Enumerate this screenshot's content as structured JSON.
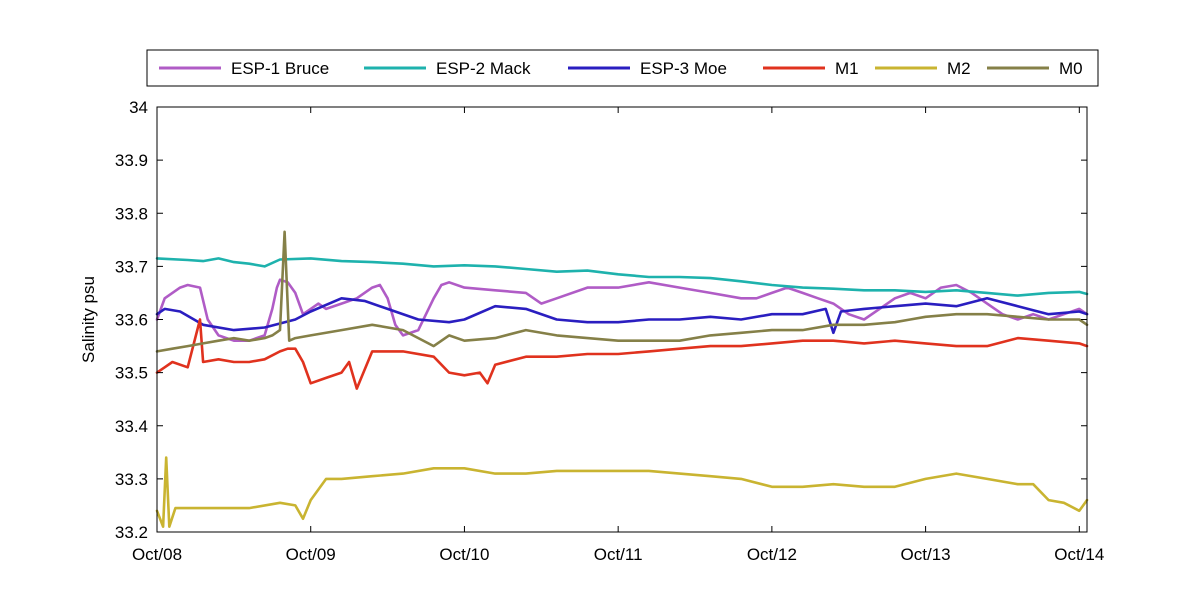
{
  "chart_data": {
    "type": "line",
    "title": "",
    "xlabel": "",
    "ylabel": "Salinity psu",
    "xlim": [
      "Oct/08",
      "Oct/14"
    ],
    "ylim": [
      33.2,
      34.0
    ],
    "grid": false,
    "legend_placement": "top",
    "x_ticks": [
      "Oct/08",
      "Oct/09",
      "Oct/10",
      "Oct/11",
      "Oct/12",
      "Oct/13",
      "Oct/14"
    ],
    "y_ticks": [
      "33.2",
      "33.3",
      "33.4",
      "33.5",
      "33.6",
      "33.7",
      "33.8",
      "33.9",
      "34"
    ],
    "series": [
      {
        "name": "ESP-1 Bruce",
        "color": "#b05cc6",
        "x": [
          0.0,
          0.05,
          0.15,
          0.2,
          0.28,
          0.33,
          0.4,
          0.5,
          0.6,
          0.7,
          0.75,
          0.78,
          0.8,
          0.85,
          0.9,
          0.95,
          1.0,
          1.05,
          1.1,
          1.2,
          1.3,
          1.4,
          1.45,
          1.5,
          1.55,
          1.6,
          1.7,
          1.8,
          1.85,
          1.9,
          2.0,
          2.2,
          2.4,
          2.5,
          2.6,
          2.8,
          3.0,
          3.2,
          3.4,
          3.6,
          3.8,
          3.9,
          4.0,
          4.1,
          4.2,
          4.3,
          4.4,
          4.5,
          4.6,
          4.7,
          4.8,
          4.9,
          5.0,
          5.1,
          5.2,
          5.3,
          5.4,
          5.5,
          5.6,
          5.7,
          5.8,
          5.9,
          6.0,
          6.05
        ],
        "y": [
          33.6,
          33.64,
          33.66,
          33.665,
          33.66,
          33.6,
          33.57,
          33.56,
          33.56,
          33.57,
          33.62,
          33.66,
          33.675,
          33.67,
          33.65,
          33.61,
          33.62,
          33.63,
          33.62,
          33.63,
          33.64,
          33.66,
          33.665,
          33.64,
          33.59,
          33.57,
          33.58,
          33.64,
          33.665,
          33.67,
          33.66,
          33.655,
          33.65,
          33.63,
          33.64,
          33.66,
          33.66,
          33.67,
          33.66,
          33.65,
          33.64,
          33.64,
          33.65,
          33.66,
          33.65,
          33.64,
          33.63,
          33.61,
          33.6,
          33.62,
          33.64,
          33.65,
          33.64,
          33.66,
          33.665,
          33.65,
          33.63,
          33.61,
          33.6,
          33.61,
          33.6,
          33.61,
          33.62,
          33.61
        ]
      },
      {
        "name": "ESP-2 Mack",
        "color": "#1eb2ad",
        "x": [
          0.0,
          0.2,
          0.3,
          0.4,
          0.5,
          0.6,
          0.7,
          0.8,
          1.0,
          1.2,
          1.4,
          1.6,
          1.8,
          2.0,
          2.2,
          2.4,
          2.6,
          2.8,
          3.0,
          3.2,
          3.4,
          3.6,
          3.8,
          4.0,
          4.2,
          4.4,
          4.6,
          4.8,
          5.0,
          5.2,
          5.4,
          5.6,
          5.8,
          6.0,
          6.05
        ],
        "y": [
          33.715,
          33.712,
          33.71,
          33.715,
          33.708,
          33.705,
          33.7,
          33.713,
          33.715,
          33.71,
          33.708,
          33.705,
          33.7,
          33.702,
          33.7,
          33.695,
          33.69,
          33.692,
          33.685,
          33.68,
          33.68,
          33.678,
          33.672,
          33.665,
          33.66,
          33.658,
          33.655,
          33.655,
          33.652,
          33.655,
          33.65,
          33.645,
          33.65,
          33.652,
          33.648
        ]
      },
      {
        "name": "ESP-3 Moe",
        "color": "#2a1ec0",
        "x": [
          0.0,
          0.05,
          0.15,
          0.3,
          0.5,
          0.7,
          0.9,
          1.0,
          1.2,
          1.35,
          1.5,
          1.7,
          1.9,
          2.0,
          2.2,
          2.4,
          2.6,
          2.8,
          3.0,
          3.2,
          3.4,
          3.6,
          3.8,
          4.0,
          4.2,
          4.35,
          4.4,
          4.45,
          4.6,
          4.8,
          5.0,
          5.2,
          5.4,
          5.6,
          5.8,
          6.0,
          6.05
        ],
        "y": [
          33.61,
          33.62,
          33.615,
          33.59,
          33.58,
          33.585,
          33.6,
          33.615,
          33.64,
          33.635,
          33.62,
          33.6,
          33.595,
          33.6,
          33.625,
          33.62,
          33.6,
          33.595,
          33.595,
          33.6,
          33.6,
          33.605,
          33.6,
          33.61,
          33.61,
          33.62,
          33.575,
          33.615,
          33.62,
          33.625,
          33.63,
          33.625,
          33.64,
          33.625,
          33.61,
          33.615,
          33.61
        ]
      },
      {
        "name": "M1",
        "color": "#e0321e",
        "x": [
          0.0,
          0.05,
          0.1,
          0.2,
          0.28,
          0.3,
          0.4,
          0.5,
          0.6,
          0.7,
          0.8,
          0.85,
          0.9,
          0.95,
          1.0,
          1.1,
          1.2,
          1.25,
          1.3,
          1.4,
          1.6,
          1.8,
          1.9,
          2.0,
          2.1,
          2.15,
          2.2,
          2.4,
          2.6,
          2.8,
          3.0,
          3.2,
          3.4,
          3.6,
          3.8,
          4.0,
          4.2,
          4.4,
          4.6,
          4.8,
          5.0,
          5.2,
          5.4,
          5.6,
          5.8,
          6.0,
          6.05
        ],
        "y": [
          33.5,
          33.51,
          33.52,
          33.51,
          33.6,
          33.52,
          33.525,
          33.52,
          33.52,
          33.525,
          33.54,
          33.545,
          33.545,
          33.52,
          33.48,
          33.49,
          33.5,
          33.52,
          33.47,
          33.54,
          33.54,
          33.53,
          33.5,
          33.495,
          33.5,
          33.48,
          33.515,
          33.53,
          33.53,
          33.535,
          33.535,
          33.54,
          33.545,
          33.55,
          33.55,
          33.555,
          33.56,
          33.56,
          33.555,
          33.56,
          33.555,
          33.55,
          33.55,
          33.565,
          33.56,
          33.555,
          33.55
        ]
      },
      {
        "name": "M2",
        "color": "#c9b431",
        "x": [
          0.0,
          0.04,
          0.06,
          0.08,
          0.12,
          0.3,
          0.6,
          0.8,
          0.9,
          0.95,
          1.0,
          1.1,
          1.2,
          1.4,
          1.6,
          1.8,
          2.0,
          2.2,
          2.4,
          2.6,
          2.8,
          3.0,
          3.2,
          3.4,
          3.6,
          3.8,
          4.0,
          4.2,
          4.4,
          4.6,
          4.8,
          5.0,
          5.2,
          5.4,
          5.6,
          5.7,
          5.8,
          5.9,
          6.0,
          6.05
        ],
        "y": [
          33.24,
          33.21,
          33.34,
          33.21,
          33.245,
          33.245,
          33.245,
          33.255,
          33.25,
          33.225,
          33.26,
          33.3,
          33.3,
          33.305,
          33.31,
          33.32,
          33.32,
          33.31,
          33.31,
          33.315,
          33.315,
          33.315,
          33.315,
          33.31,
          33.305,
          33.3,
          33.285,
          33.285,
          33.29,
          33.285,
          33.285,
          33.3,
          33.31,
          33.3,
          33.29,
          33.29,
          33.26,
          33.255,
          33.24,
          33.26
        ]
      },
      {
        "name": "M0",
        "color": "#858048",
        "x": [
          0.0,
          0.1,
          0.2,
          0.3,
          0.4,
          0.5,
          0.6,
          0.7,
          0.75,
          0.8,
          0.83,
          0.86,
          0.9,
          1.0,
          1.2,
          1.4,
          1.6,
          1.8,
          1.9,
          2.0,
          2.2,
          2.4,
          2.6,
          2.8,
          3.0,
          3.2,
          3.4,
          3.6,
          3.8,
          4.0,
          4.2,
          4.4,
          4.6,
          4.8,
          4.9,
          5.0,
          5.2,
          5.4,
          5.6,
          5.8,
          6.0,
          6.05
        ],
        "y": [
          33.54,
          33.545,
          33.55,
          33.555,
          33.56,
          33.565,
          33.56,
          33.565,
          33.57,
          33.58,
          33.765,
          33.56,
          33.565,
          33.57,
          33.58,
          33.59,
          33.58,
          33.55,
          33.57,
          33.56,
          33.565,
          33.58,
          33.57,
          33.565,
          33.56,
          33.56,
          33.56,
          33.57,
          33.575,
          33.58,
          33.58,
          33.59,
          33.59,
          33.595,
          33.6,
          33.605,
          33.61,
          33.61,
          33.605,
          33.6,
          33.6,
          33.59
        ]
      }
    ]
  }
}
